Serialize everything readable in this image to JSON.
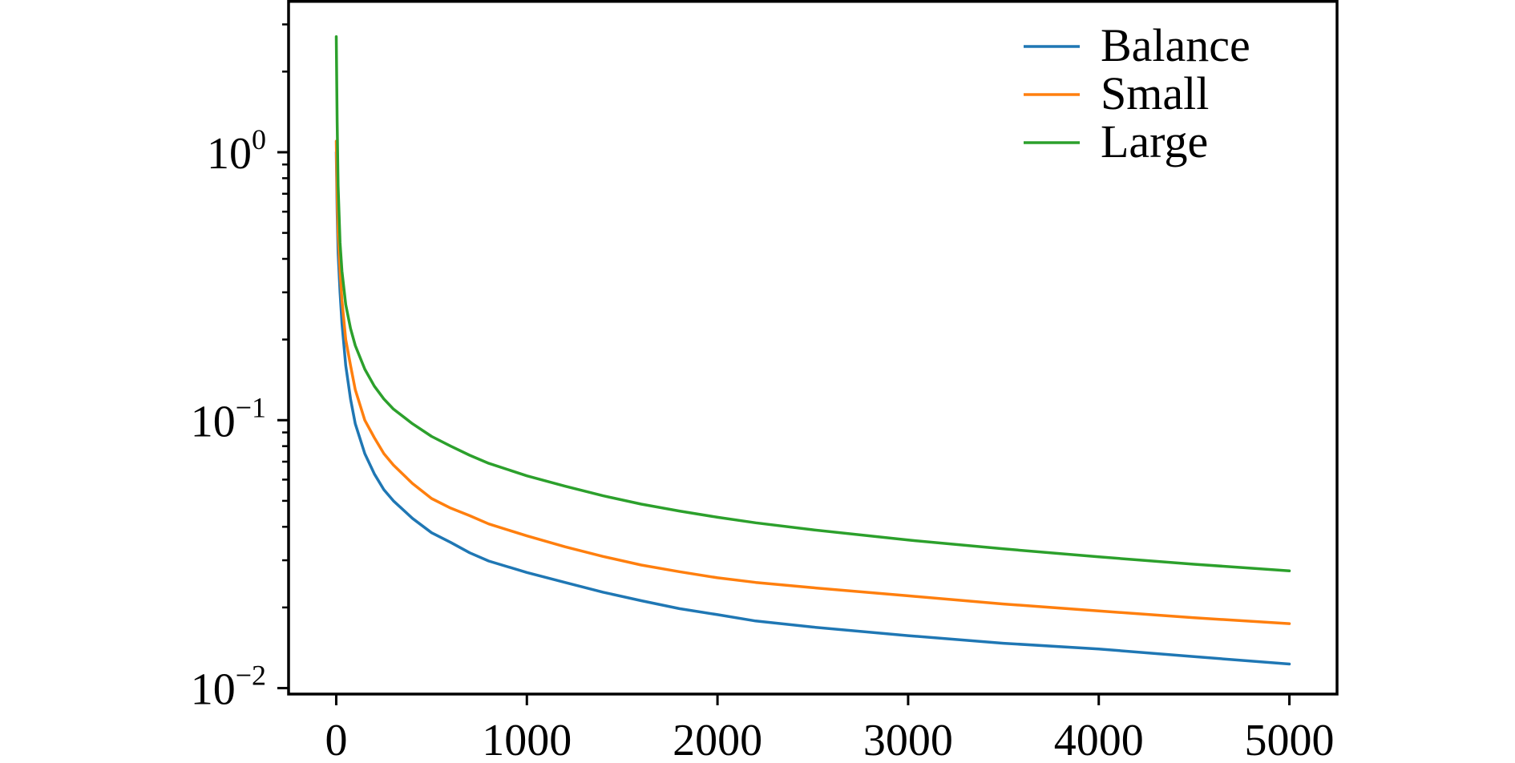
{
  "chart_data": {
    "type": "line",
    "title": "",
    "xlabel": "",
    "ylabel": "",
    "xlim": [
      -250,
      5250
    ],
    "ylim": [
      0.0095,
      3.7
    ],
    "yscale": "log",
    "grid": false,
    "legend_position": "top-right",
    "x_ticks": [
      {
        "value": 0,
        "label": "0"
      },
      {
        "value": 1000,
        "label": "1000"
      },
      {
        "value": 2000,
        "label": "2000"
      },
      {
        "value": 3000,
        "label": "3000"
      },
      {
        "value": 4000,
        "label": "4000"
      },
      {
        "value": 5000,
        "label": "5000"
      }
    ],
    "y_ticks": [
      {
        "value": 1,
        "base": "10",
        "exp": "0"
      },
      {
        "value": 0.1,
        "base": "10",
        "exp": "−1"
      },
      {
        "value": 0.01,
        "base": "10",
        "exp": "−2"
      }
    ],
    "series": [
      {
        "name": "Balance",
        "color": "#1f77b4",
        "x": [
          0,
          5,
          10,
          20,
          30,
          50,
          75,
          100,
          150,
          200,
          250,
          300,
          400,
          500,
          600,
          700,
          800,
          1000,
          1200,
          1400,
          1600,
          1800,
          2000,
          2200,
          2500,
          3000,
          3500,
          4000,
          4500,
          5000
        ],
        "y": [
          1.0,
          0.6,
          0.42,
          0.3,
          0.23,
          0.16,
          0.12,
          0.097,
          0.075,
          0.063,
          0.055,
          0.05,
          0.043,
          0.038,
          0.035,
          0.032,
          0.0298,
          0.027,
          0.0248,
          0.0228,
          0.0212,
          0.0198,
          0.0188,
          0.0178,
          0.0169,
          0.0157,
          0.0147,
          0.014,
          0.0131,
          0.0123
        ]
      },
      {
        "name": "Small",
        "color": "#ff7f0e",
        "x": [
          0,
          5,
          10,
          20,
          30,
          50,
          75,
          100,
          150,
          200,
          250,
          300,
          400,
          500,
          600,
          700,
          800,
          1000,
          1200,
          1400,
          1600,
          1800,
          2000,
          2200,
          2500,
          3000,
          3500,
          4000,
          4500,
          5000
        ],
        "y": [
          1.1,
          0.7,
          0.5,
          0.36,
          0.28,
          0.2,
          0.16,
          0.13,
          0.1,
          0.086,
          0.075,
          0.068,
          0.058,
          0.051,
          0.047,
          0.044,
          0.041,
          0.037,
          0.0337,
          0.031,
          0.0288,
          0.0272,
          0.0258,
          0.0248,
          0.0237,
          0.0221,
          0.0206,
          0.0194,
          0.0183,
          0.0174
        ]
      },
      {
        "name": "Large",
        "color": "#2ca02c",
        "x": [
          0,
          5,
          10,
          20,
          30,
          50,
          75,
          100,
          150,
          200,
          250,
          300,
          400,
          500,
          600,
          700,
          800,
          1000,
          1200,
          1400,
          1600,
          1800,
          2000,
          2200,
          2500,
          3000,
          3500,
          4000,
          4500,
          5000
        ],
        "y": [
          2.7,
          1.3,
          0.75,
          0.46,
          0.36,
          0.27,
          0.22,
          0.19,
          0.155,
          0.134,
          0.12,
          0.11,
          0.097,
          0.087,
          0.08,
          0.074,
          0.069,
          0.062,
          0.0567,
          0.0522,
          0.0486,
          0.0458,
          0.0434,
          0.0414,
          0.039,
          0.0357,
          0.0331,
          0.0309,
          0.029,
          0.0274
        ]
      }
    ]
  }
}
